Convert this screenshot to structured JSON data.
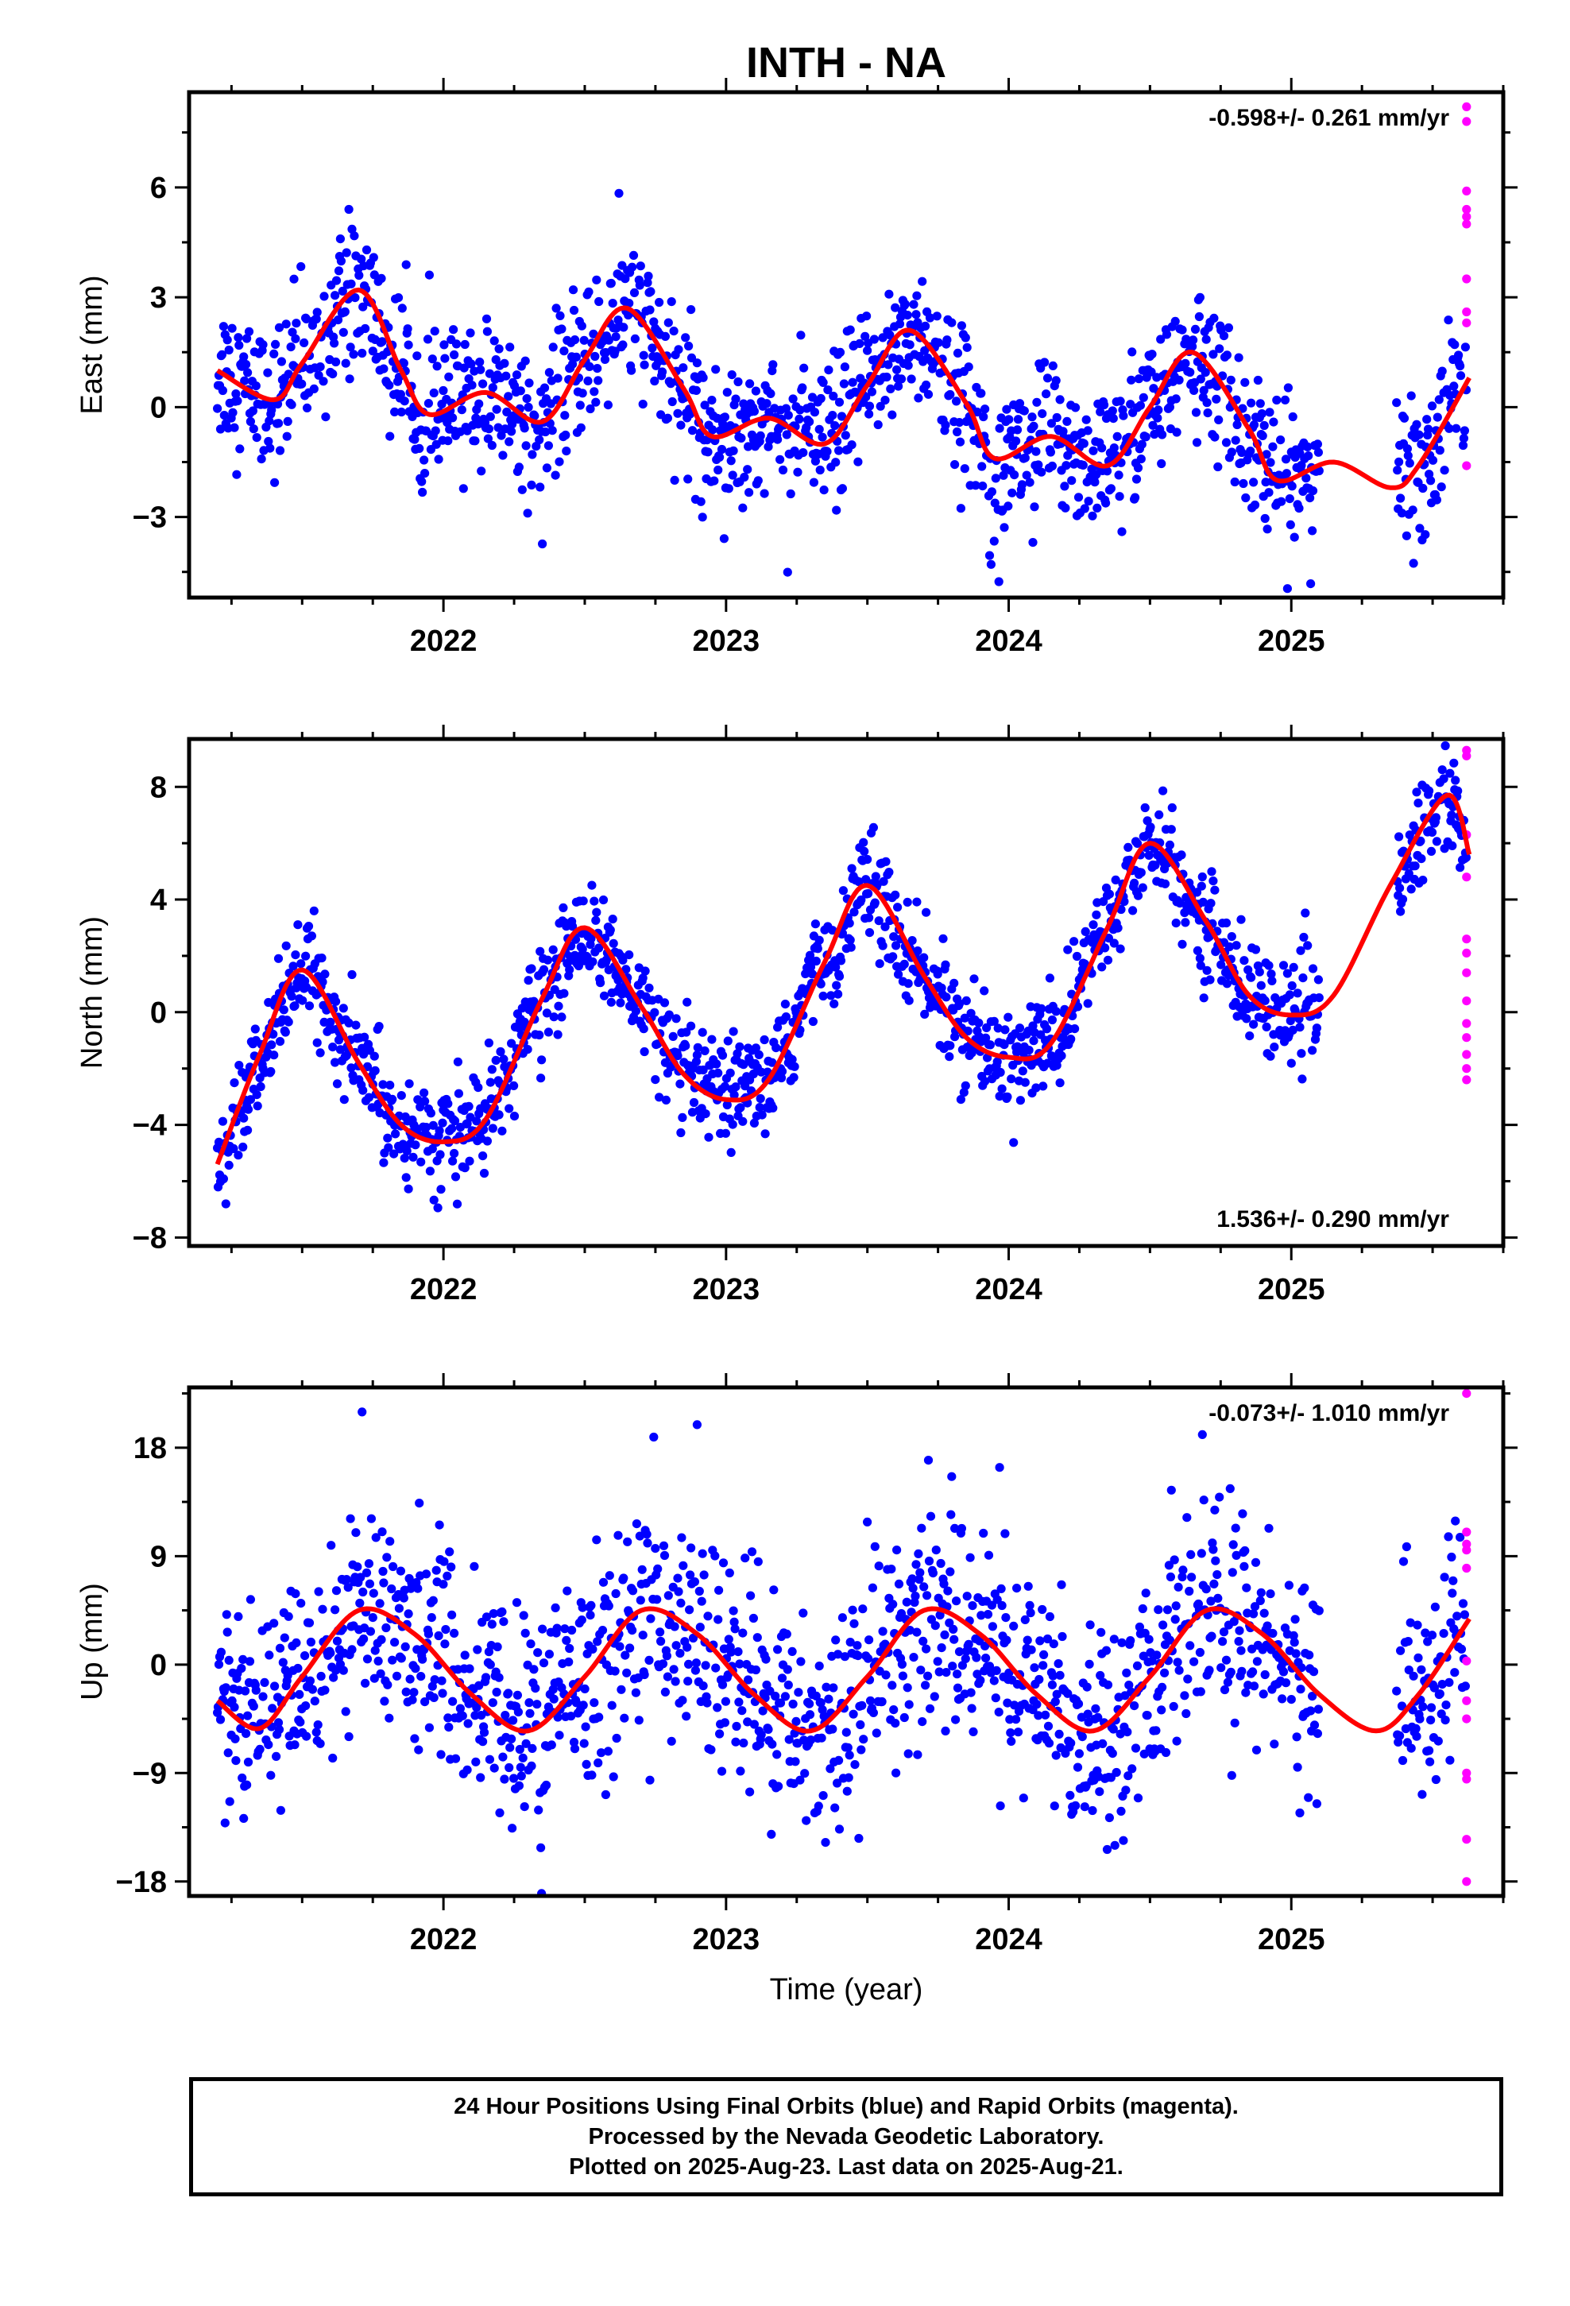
{
  "title": "INTH - NA",
  "colors": {
    "final_orbits": "#0000ff",
    "rapid_orbits": "#ff00ff",
    "fit_curve": "#ff0000"
  },
  "xlabel": "Time (year)",
  "caption": {
    "line1": "24 Hour Positions Using Final Orbits (blue) and Rapid Orbits (magenta).",
    "line2": "Processed by the Nevada Geodetic Laboratory.",
    "line3": "Plotted on 2025-Aug-23. Last data on 2025-Aug-21."
  },
  "chart_data": [
    {
      "type": "scatter",
      "ylabel": "East (mm)",
      "xlim": [
        2021.1,
        2025.75
      ],
      "ylim": [
        -5.2,
        8.6
      ],
      "xticks": [
        "2022",
        "2023",
        "2024",
        "2025"
      ],
      "yticks": [
        "6",
        "3",
        "0",
        "-3"
      ],
      "grid": false,
      "rate_label": "-0.598+/- 0.261 mm/yr",
      "rate_label_position": "top-right",
      "series": [
        {
          "kind": "points",
          "color": "final_orbits",
          "x_range": [
            2021.2,
            2025.62
          ],
          "gap": [
            2025.1,
            2025.37
          ]
        },
        {
          "kind": "points",
          "color": "rapid_orbits",
          "x": 2025.62,
          "values": [
            8.2,
            7.8,
            5.9,
            5.4,
            5.2,
            5.0,
            3.5,
            2.6,
            2.3,
            -1.6
          ]
        },
        {
          "kind": "fit",
          "color": "fit_curve",
          "x": [
            2021.2,
            2021.4,
            2021.5,
            2021.7,
            2021.85,
            2021.95,
            2022.15,
            2022.35,
            2022.5,
            2022.65,
            2022.85,
            2022.95,
            2023.15,
            2023.35,
            2023.5,
            2023.65,
            2023.85,
            2023.95,
            2024.15,
            2024.35,
            2024.5,
            2024.65,
            2024.85,
            2024.95,
            2025.15,
            2025.35,
            2025.45,
            2025.63
          ],
          "values": [
            1.0,
            0.2,
            1.2,
            3.2,
            1.0,
            -0.2,
            0.4,
            -0.4,
            1.3,
            2.7,
            0.5,
            -0.8,
            -0.3,
            -1.0,
            0.6,
            2.1,
            0.1,
            -1.4,
            -0.8,
            -1.6,
            0.0,
            1.5,
            -0.6,
            -2.0,
            -1.5,
            -2.2,
            -1.6,
            0.8
          ]
        }
      ]
    },
    {
      "type": "scatter",
      "ylabel": "North (mm)",
      "xlim": [
        2021.1,
        2025.75
      ],
      "ylim": [
        -8.3,
        9.7
      ],
      "xticks": [
        "2022",
        "2023",
        "2024",
        "2025"
      ],
      "yticks": [
        "8",
        "4",
        "0",
        "-4",
        "-8"
      ],
      "grid": false,
      "rate_label": "1.536+/- 0.290 mm/yr",
      "rate_label_position": "bottom-right",
      "series": [
        {
          "kind": "points",
          "color": "final_orbits",
          "x_range": [
            2021.2,
            2025.62
          ],
          "gap": [
            2025.1,
            2025.37
          ]
        },
        {
          "kind": "points",
          "color": "rapid_orbits",
          "x": 2025.62,
          "values": [
            9.3,
            9.1,
            6.3,
            4.8,
            2.6,
            2.1,
            1.4,
            0.4,
            -0.4,
            -0.9,
            -1.5,
            -2.0,
            -2.4
          ]
        },
        {
          "kind": "fit",
          "color": "fit_curve",
          "x": [
            2021.2,
            2021.35,
            2021.5,
            2021.7,
            2021.85,
            2022.0,
            2022.15,
            2022.35,
            2022.5,
            2022.7,
            2022.85,
            2023.0,
            2023.15,
            2023.35,
            2023.5,
            2023.7,
            2023.85,
            2024.0,
            2024.15,
            2024.35,
            2024.5,
            2024.7,
            2024.85,
            2025.0,
            2025.15,
            2025.35,
            2025.55,
            2025.63
          ],
          "values": [
            -5.4,
            -1.5,
            1.5,
            -1.8,
            -4.0,
            -4.6,
            -3.8,
            0.5,
            3.0,
            0.2,
            -2.2,
            -3.1,
            -2.4,
            1.8,
            4.5,
            1.3,
            -0.9,
            -1.6,
            -1.1,
            3.0,
            6.0,
            3.2,
            0.6,
            -0.1,
            0.6,
            4.5,
            7.7,
            5.6
          ]
        }
      ]
    },
    {
      "type": "scatter",
      "ylabel": "Up (mm)",
      "xlim": [
        2021.1,
        2025.75
      ],
      "ylim": [
        -19.2,
        23.0
      ],
      "xticks": [
        "2022",
        "2023",
        "2024",
        "2025"
      ],
      "yticks": [
        "18",
        "9",
        "0",
        "-9",
        "-18"
      ],
      "grid": false,
      "rate_label": "-0.073+/- 1.010 mm/yr",
      "rate_label_position": "top-right",
      "series": [
        {
          "kind": "points",
          "color": "final_orbits",
          "x_range": [
            2021.2,
            2025.62
          ],
          "gap": [
            2025.1,
            2025.37
          ]
        },
        {
          "kind": "points",
          "color": "rapid_orbits",
          "x": 2025.62,
          "values": [
            22.5,
            11.0,
            10.0,
            9.5,
            8.0,
            0.3,
            -3.0,
            -4.5,
            -9.0,
            -9.5,
            -14.5,
            -18.0
          ]
        },
        {
          "kind": "fit",
          "color": "fit_curve",
          "x": [
            2021.2,
            2021.35,
            2021.5,
            2021.7,
            2021.9,
            2022.1,
            2022.3,
            2022.5,
            2022.7,
            2022.9,
            2023.1,
            2023.3,
            2023.5,
            2023.7,
            2023.9,
            2024.1,
            2024.3,
            2024.5,
            2024.7,
            2024.9,
            2025.1,
            2025.3,
            2025.45,
            2025.63
          ],
          "values": [
            -3.0,
            -5.3,
            -1.0,
            4.5,
            2.5,
            -2.5,
            -5.5,
            -1.0,
            4.5,
            2.5,
            -2.5,
            -5.5,
            -1.0,
            4.5,
            2.5,
            -2.5,
            -5.5,
            -1.0,
            4.5,
            2.5,
            -2.5,
            -5.5,
            -2.5,
            3.8
          ]
        }
      ]
    }
  ]
}
